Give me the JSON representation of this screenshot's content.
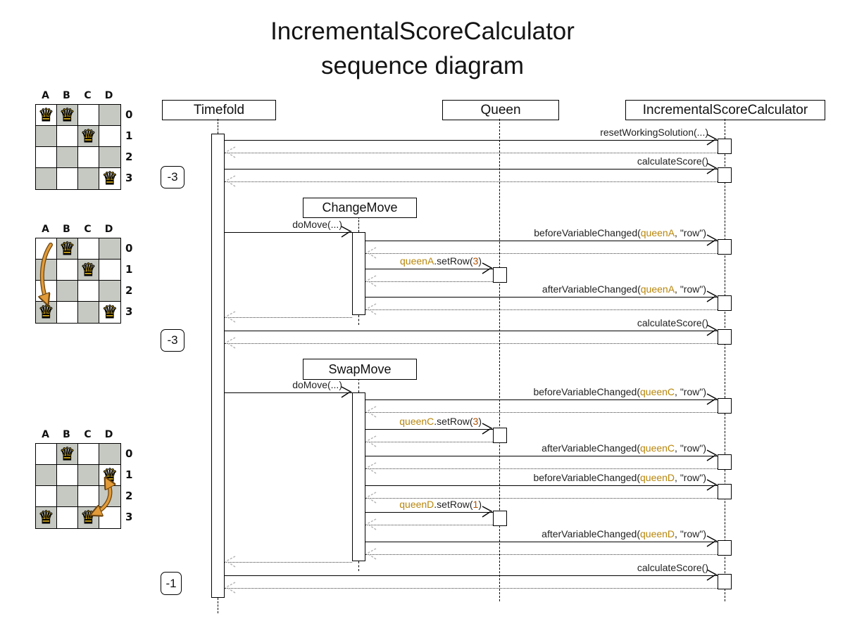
{
  "title": {
    "line1": "IncrementalScoreCalculator",
    "line2": "sequence diagram"
  },
  "participants": {
    "timefold": "Timefold",
    "queen": "Queen",
    "calculator": "IncrementalScoreCalculator"
  },
  "moves": {
    "change": "ChangeMove",
    "swap": "SwapMove"
  },
  "scores": {
    "first": "-3",
    "second": "-3",
    "third": "-1"
  },
  "messages": {
    "reset": [
      "resetWorkingSolution(...)"
    ],
    "calc": [
      "calculateScore()"
    ],
    "domove": [
      "doMove(...)"
    ],
    "beforeA": [
      "beforeVariableChanged(",
      "queenA",
      ", \"row\")"
    ],
    "setA": [
      "queenA",
      ".setRow(",
      "3",
      ")"
    ],
    "afterA": [
      "afterVariableChanged(",
      "queenA",
      ", \"row\")"
    ],
    "beforeC": [
      "beforeVariableChanged(",
      "queenC",
      ", \"row\")"
    ],
    "setC": [
      "queenC",
      ".setRow(",
      "3",
      ")"
    ],
    "afterC": [
      "afterVariableChanged(",
      "queenC",
      ", \"row\")"
    ],
    "beforeD": [
      "beforeVariableChanged(",
      "queenD",
      ", \"row\")"
    ],
    "setD": [
      "queenD",
      ".setRow(",
      "1",
      ")"
    ],
    "afterD": [
      "afterVariableChanged(",
      "queenD",
      ", \"row\")"
    ]
  },
  "boards": [
    {
      "columns": [
        "A",
        "B",
        "C",
        "D"
      ],
      "rows": [
        "0",
        "1",
        "2",
        "3"
      ],
      "queens": [
        "A0",
        "B0",
        "C1",
        "D3"
      ]
    },
    {
      "columns": [
        "A",
        "B",
        "C",
        "D"
      ],
      "rows": [
        "0",
        "1",
        "2",
        "3"
      ],
      "queens": [
        "B0",
        "C1",
        "A3",
        "D3"
      ],
      "arrow": {
        "from": "A0",
        "to": "A3"
      }
    },
    {
      "columns": [
        "A",
        "B",
        "C",
        "D"
      ],
      "rows": [
        "0",
        "1",
        "2",
        "3"
      ],
      "queens": [
        "B0",
        "D1",
        "A3",
        "C3"
      ],
      "arrow": {
        "from": "D1",
        "to": "C3",
        "double_headed": true
      }
    }
  ],
  "icons": {
    "queen_glyph": "♛"
  },
  "colors": {
    "queen_reference": "#b8860b",
    "number_literal": "#b25000",
    "move_arrow": "#e29b38",
    "move_arrow_outline": "#6b4410",
    "board_dark_cell": "#c6c9c2",
    "queen_gold": "#f2c21c"
  }
}
